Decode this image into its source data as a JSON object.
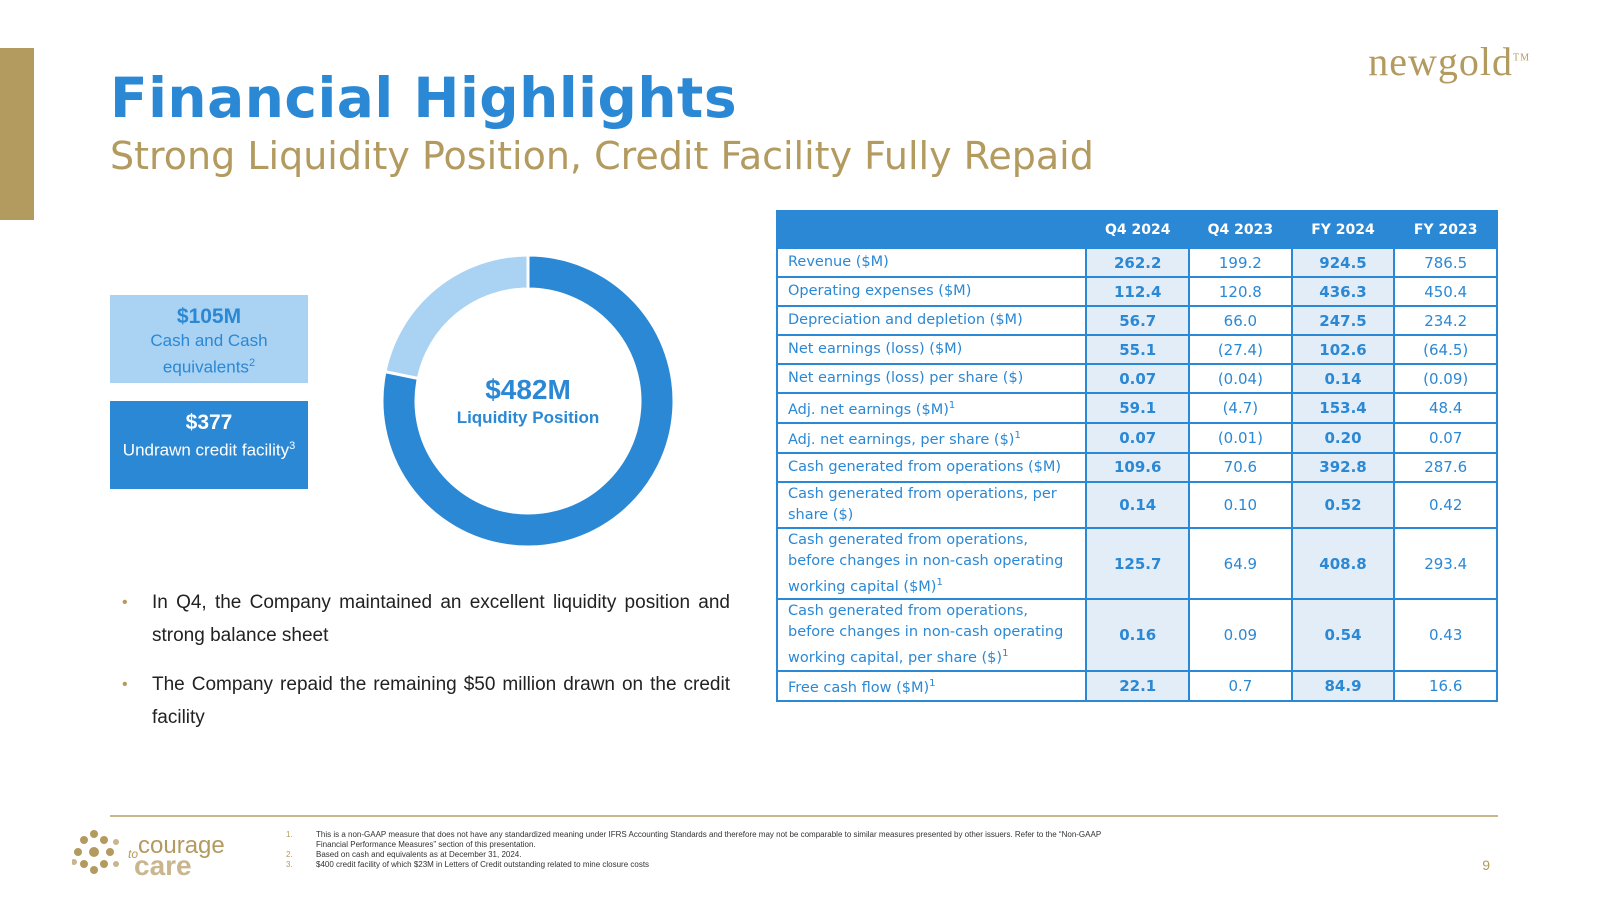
{
  "brand": {
    "logo_text": "newgold",
    "logo_mark": "TM"
  },
  "header": {
    "title": "Financial Highlights",
    "subtitle": "Strong Liquidity Position, Credit Facility Fully Repaid"
  },
  "liquidity": {
    "cash": {
      "amount": "$105M",
      "label": "Cash and Cash equivalents",
      "footnote": "2"
    },
    "credit": {
      "amount": "$377",
      "label": "Undrawn credit facility",
      "footnote": "3"
    },
    "donut": {
      "total": "$482M",
      "label": "Liquidity Position",
      "segments": [
        {
          "name": "Cash and Cash equivalents",
          "value": 105,
          "color": "#a9d2f3"
        },
        {
          "name": "Undrawn credit facility",
          "value": 377,
          "color": "#2b88d4"
        }
      ]
    }
  },
  "bullets": [
    "In Q4, the Company maintained an excellent liquidity position and strong balance sheet",
    "The Company repaid the remaining $50 million drawn on the credit facility"
  ],
  "table": {
    "headers": [
      "",
      "Q4 2024",
      "Q4 2023",
      "FY 2024",
      "FY 2023"
    ],
    "rows": [
      {
        "label": "Revenue ($M)",
        "sup": "",
        "values": [
          "262.2",
          "199.2",
          "924.5",
          "786.5"
        ]
      },
      {
        "label": "Operating expenses ($M)",
        "sup": "",
        "values": [
          "112.4",
          "120.8",
          "436.3",
          "450.4"
        ]
      },
      {
        "label": "Depreciation and depletion ($M)",
        "sup": "",
        "values": [
          "56.7",
          "66.0",
          "247.5",
          "234.2"
        ]
      },
      {
        "label": "Net earnings (loss) ($M)",
        "sup": "",
        "values": [
          "55.1",
          "(27.4)",
          "102.6",
          "(64.5)"
        ]
      },
      {
        "label": "Net earnings (loss) per share ($)",
        "sup": "",
        "values": [
          "0.07",
          "(0.04)",
          "0.14",
          "(0.09)"
        ]
      },
      {
        "label": "Adj. net earnings ($M)",
        "sup": "1",
        "values": [
          "59.1",
          "(4.7)",
          "153.4",
          "48.4"
        ]
      },
      {
        "label": "Adj. net earnings, per share ($)",
        "sup": "1",
        "values": [
          "0.07",
          "(0.01)",
          "0.20",
          "0.07"
        ]
      },
      {
        "label": "Cash generated from operations ($M)",
        "sup": "",
        "values": [
          "109.6",
          "70.6",
          "392.8",
          "287.6"
        ]
      },
      {
        "label": "Cash generated from operations, per share ($)",
        "sup": "",
        "values": [
          "0.14",
          "0.10",
          "0.52",
          "0.42"
        ]
      },
      {
        "label": "Cash generated from operations, before changes in non-cash operating working capital ($M)",
        "sup": "1",
        "values": [
          "125.7",
          "64.9",
          "408.8",
          "293.4"
        ]
      },
      {
        "label": "Cash generated from operations, before changes in non-cash operating working capital, per share ($)",
        "sup": "1",
        "values": [
          "0.16",
          "0.09",
          "0.54",
          "0.43"
        ]
      },
      {
        "label": "Free cash flow ($M)",
        "sup": "1",
        "values": [
          "22.1",
          "0.7",
          "84.9",
          "16.6"
        ]
      }
    ]
  },
  "footer": {
    "care_logo": {
      "to": "to",
      "courage": "courage",
      "care": "care"
    },
    "notes": [
      {
        "num": "1.",
        "text": "This is a non-GAAP measure that does not have any standardized meaning under IFRS Accounting Standards and therefore may not be comparable to similar measures presented by other issuers. Refer to the “Non-GAAP Financial Performance Measures” section of this presentation."
      },
      {
        "num": "2.",
        "text": "Based on cash and equivalents as at December 31, 2024."
      },
      {
        "num": "3.",
        "text": "$400 credit facility of which $23M in Letters of Credit outstanding related to mine closure costs"
      }
    ],
    "page_number": "9"
  },
  "colors": {
    "blue": "#2b88d4",
    "light_blue": "#a9d2f3",
    "gold": "#b39a5f",
    "cell_highlight": "#e3edf7"
  }
}
